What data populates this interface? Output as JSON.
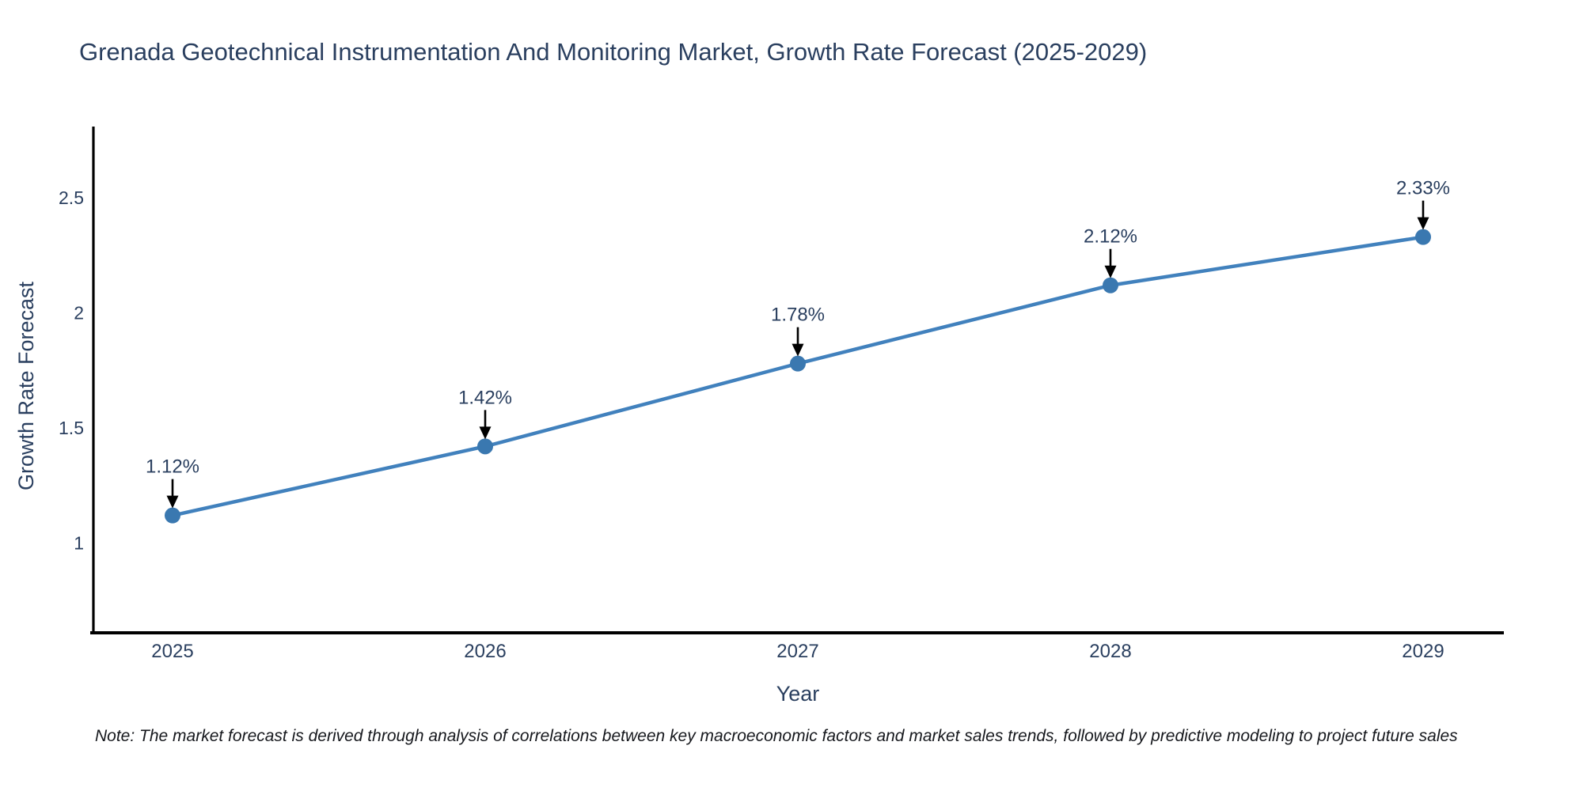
{
  "chart_data": {
    "type": "line",
    "title": "Grenada Geotechnical Instrumentation And Monitoring Market, Growth Rate Forecast (2025-2029)",
    "xlabel": "Year",
    "ylabel": "Growth Rate Forecast",
    "categories": [
      "2025",
      "2026",
      "2027",
      "2028",
      "2029"
    ],
    "values": [
      1.12,
      1.42,
      1.78,
      2.12,
      2.33
    ],
    "point_labels": [
      "1.12%",
      "1.42%",
      "1.78%",
      "2.12%",
      "2.33%"
    ],
    "yticks": [
      1,
      1.5,
      2,
      2.5
    ],
    "ytick_labels": [
      "1",
      "1.5",
      "2",
      "2.5"
    ],
    "ylim": [
      0.61,
      2.81
    ],
    "grid": false,
    "legend": "none",
    "colors": {
      "line": "#4181bd",
      "marker": "#3a78b0",
      "axis": "#000000",
      "text": "#2a3f5f",
      "arrow": "#000000",
      "background": "#ffffff"
    }
  },
  "note": "Note: The market forecast is derived through analysis of correlations between key macroeconomic factors and market sales trends, followed by predictive modeling to project future sales"
}
